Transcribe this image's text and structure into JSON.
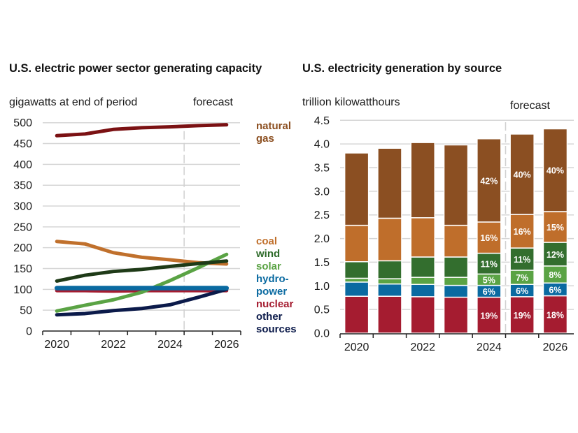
{
  "left": {
    "title": "U.S. electric power sector generating capacity",
    "unit_label": "gigawatts at end of period",
    "forecast_label": "forecast"
  },
  "right": {
    "title": "U.S. electricity generation by source",
    "unit_label": "trillion kilowatthours",
    "forecast_label": "forecast"
  },
  "chart_data": [
    {
      "type": "line",
      "title": "U.S. electric power sector generating capacity",
      "ylabel": "gigawatts at end of period",
      "xlabel": "",
      "x": [
        2020,
        2021,
        2022,
        2023,
        2024,
        2025,
        2026
      ],
      "x_tick_labels": [
        "2020",
        "2022",
        "2024",
        "2026"
      ],
      "y_ticks": [
        "0",
        "50",
        "100",
        "150",
        "200",
        "250",
        "300",
        "350",
        "400",
        "450",
        "500"
      ],
      "ylim": [
        0,
        500
      ],
      "grid": true,
      "forecast_start": "between 2024 and 2025",
      "forecast_label": "forecast",
      "legend_placement": "right",
      "series": [
        {
          "name": "natural gas",
          "label_lines": [
            "natural",
            "gas"
          ],
          "color": "#7b1113",
          "label_color": "#8b4e1f",
          "values": [
            469,
            473,
            484,
            488,
            490,
            493,
            495
          ]
        },
        {
          "name": "coal",
          "label_lines": [
            "coal"
          ],
          "color": "#c0702c",
          "label_color": "#c0702c",
          "values": [
            215,
            209,
            188,
            177,
            171,
            164,
            161
          ]
        },
        {
          "name": "wind",
          "label_lines": [
            "wind"
          ],
          "color": "#1e3a17",
          "label_color": "#2e6b2a",
          "values": [
            120,
            134,
            143,
            148,
            155,
            162,
            168
          ]
        },
        {
          "name": "solar",
          "label_lines": [
            "solar"
          ],
          "color": "#5aa344",
          "label_color": "#5aa344",
          "values": [
            48,
            62,
            75,
            93,
            121,
            152,
            184
          ]
        },
        {
          "name": "nuclear",
          "label_lines": [
            "nuclear"
          ],
          "color": "#a51c30",
          "label_color": "#a51c30",
          "values": [
            97,
            97,
            96,
            97,
            97,
            97,
            97
          ]
        },
        {
          "name": "hydropower",
          "label_lines": [
            "hydro-",
            "power"
          ],
          "color": "#0a6aa1",
          "label_color": "#0a6aa1",
          "values": [
            103,
            103,
            103,
            103,
            103,
            103,
            103
          ]
        },
        {
          "name": "other sources",
          "label_lines": [
            "other",
            "sources"
          ],
          "color": "#0b1a4a",
          "label_color": "#0b1a4a",
          "values": [
            39,
            42,
            49,
            54,
            63,
            81,
            100
          ]
        }
      ]
    },
    {
      "type": "bar",
      "stacked": true,
      "title": "U.S. electricity generation by source",
      "ylabel": "trillion kilowatthours",
      "xlabel": "",
      "categories": [
        "2020",
        "2021",
        "2022",
        "2023",
        "2024",
        "2025",
        "2026"
      ],
      "x_tick_labels": [
        "2020",
        "2022",
        "2024",
        "2026"
      ],
      "y_ticks": [
        "0.0",
        "0.5",
        "1.0",
        "1.5",
        "2.0",
        "2.5",
        "3.0",
        "3.5",
        "4.0",
        "4.5"
      ],
      "ylim": [
        0,
        4.5
      ],
      "grid": true,
      "forecast_start": "between 2024 and 2025",
      "forecast_label": "forecast",
      "series": [
        {
          "name": "nuclear",
          "color": "#a51c30",
          "values": [
            0.78,
            0.78,
            0.77,
            0.76,
            0.76,
            0.77,
            0.79
          ],
          "labels": [
            "",
            "",
            "",
            "",
            "19%",
            "19%",
            "18%"
          ]
        },
        {
          "name": "hydropower",
          "color": "#0a6aa1",
          "values": [
            0.3,
            0.26,
            0.26,
            0.25,
            0.25,
            0.26,
            0.27
          ],
          "labels": [
            "",
            "",
            "",
            "",
            "6%",
            "6%",
            "6%"
          ]
        },
        {
          "name": "solar",
          "color": "#5aa344",
          "values": [
            0.08,
            0.11,
            0.15,
            0.17,
            0.24,
            0.3,
            0.36
          ],
          "labels": [
            "",
            "",
            "",
            "",
            "5%",
            "7%",
            "8%"
          ]
        },
        {
          "name": "wind",
          "color": "#336e2e",
          "values": [
            0.35,
            0.38,
            0.43,
            0.43,
            0.44,
            0.47,
            0.5
          ],
          "labels": [
            "",
            "",
            "",
            "",
            "11%",
            "11%",
            "12%"
          ]
        },
        {
          "name": "coal",
          "color": "#bf6e2b",
          "values": [
            0.77,
            0.9,
            0.83,
            0.67,
            0.66,
            0.71,
            0.65
          ],
          "labels": [
            "",
            "",
            "",
            "",
            "16%",
            "16%",
            "15%"
          ]
        },
        {
          "name": "natural gas",
          "color": "#8b4f22",
          "values": [
            1.53,
            1.48,
            1.59,
            1.7,
            1.76,
            1.7,
            1.75
          ],
          "labels": [
            "",
            "",
            "",
            "",
            "42%",
            "40%",
            "40%"
          ]
        }
      ],
      "totals": [
        3.81,
        3.91,
        4.03,
        3.98,
        4.11,
        4.21,
        4.32
      ]
    }
  ]
}
